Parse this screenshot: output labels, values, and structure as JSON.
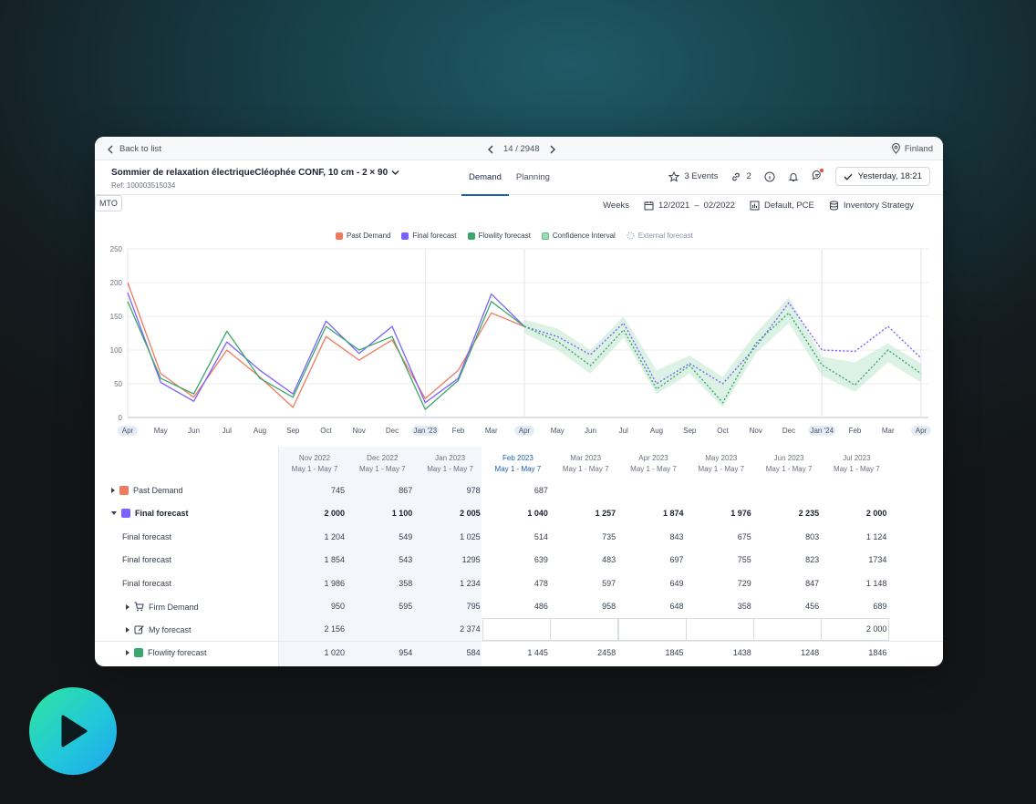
{
  "topbar": {
    "back_label": "Back to list",
    "pager": "14 / 2948",
    "location": "Finland"
  },
  "product": {
    "title": "Sommier de relaxation électriqueCléophée CONF, 10 cm - 2 × 90",
    "ref": "Ref: 100003515034"
  },
  "tabs": [
    {
      "label": "Demand",
      "active": true
    },
    {
      "label": "Planning",
      "active": false
    }
  ],
  "header_actions": {
    "events": "3 Events",
    "links_count": "2",
    "updated": "Yesterday, 18:21"
  },
  "toolbar": {
    "mto": "MTO",
    "granularity": "Weeks",
    "date_from": "12/2021",
    "date_sep": "–",
    "date_to": "02/2022",
    "scenario": "Default, PCE",
    "strategy": "Inventory Strategy"
  },
  "colors": {
    "past_demand": "#f07a5d",
    "final_forecast": "#7b61ff",
    "flowlity_forecast": "#3aa86b",
    "confidence": "#bfe8cf",
    "external_forecast": "#8fa3d6",
    "accent": "#1b5fad"
  },
  "chart_data": {
    "type": "line",
    "legend": [
      "Past Demand",
      "Final forecast",
      "Flowlity forecast",
      "Confidence Interval",
      "External forecast"
    ],
    "x_labels": [
      "Apr",
      "May",
      "Jun",
      "Jul",
      "Aug",
      "Sep",
      "Oct",
      "Nov",
      "Dec",
      "Jan '23",
      "Feb",
      "Mar",
      "Apr",
      "May",
      "Jun",
      "Jul",
      "Aug",
      "Sep",
      "Oct",
      "Nov",
      "Dec",
      "Jan '24",
      "Feb",
      "Mar",
      "Apr"
    ],
    "highlighted_x_labels": [
      "Jan '23",
      "Apr",
      "Jan '24"
    ],
    "y_ticks": [
      0,
      50,
      100,
      150,
      200,
      250
    ],
    "ylim": [
      0,
      250
    ],
    "grid": true,
    "series": [
      {
        "name": "Past Demand",
        "style": "solid",
        "x_start": 0,
        "values": [
          200,
          65,
          30,
          100,
          60,
          15,
          120,
          85,
          115,
          28,
          70,
          155,
          135
        ]
      },
      {
        "name": "Final forecast",
        "style": "solid",
        "x_start": 0,
        "values": [
          185,
          52,
          24,
          112,
          70,
          35,
          143,
          95,
          135,
          22,
          58,
          183,
          135
        ]
      },
      {
        "name": "Flowlity forecast",
        "style": "solid",
        "x_start": 0,
        "values": [
          172,
          58,
          35,
          128,
          58,
          30,
          135,
          100,
          120,
          12,
          55,
          172,
          135
        ]
      },
      {
        "name": "Final forecast",
        "style": "dotted",
        "x_start": 12,
        "values": [
          135,
          120,
          93,
          140,
          50,
          80,
          50,
          105,
          170,
          100,
          98,
          135,
          88
        ]
      },
      {
        "name": "Flowlity forecast",
        "style": "dotted",
        "x_start": 12,
        "values": [
          135,
          113,
          77,
          130,
          42,
          77,
          22,
          110,
          155,
          78,
          48,
          100,
          65
        ]
      }
    ],
    "confidence_band": {
      "x_start": 12,
      "upper": [
        145,
        132,
        100,
        150,
        70,
        92,
        60,
        125,
        178,
        90,
        82,
        110,
        80
      ],
      "lower": [
        125,
        100,
        65,
        118,
        35,
        65,
        15,
        95,
        140,
        62,
        38,
        82,
        52
      ]
    }
  },
  "table": {
    "columns": [
      {
        "month": "Nov 2022",
        "range": "May 1 - May 7"
      },
      {
        "month": "Dec 2022",
        "range": "May 1 - May 7"
      },
      {
        "month": "Jan 2023",
        "range": "May 1 - May 7"
      },
      {
        "month": "Feb 2023",
        "range": "May 1 - May 7",
        "current": true
      },
      {
        "month": "Mar 2023",
        "range": "May 1 - May 7"
      },
      {
        "month": "Apr 2023",
        "range": "May 1 - May 7"
      },
      {
        "month": "May 2023",
        "range": "May 1 - May 7"
      },
      {
        "month": "Jun 2023",
        "range": "May 1 - May 7"
      },
      {
        "month": "Jul 2023",
        "range": "May 1 - May 7"
      }
    ],
    "rows": [
      {
        "label": "Past Demand",
        "caret": "right",
        "marker": "past",
        "bold": false,
        "indent": 0,
        "values": [
          "745",
          "867",
          "978",
          "687",
          "",
          "",
          "",
          "",
          ""
        ]
      },
      {
        "label": "Final forecast",
        "caret": "down",
        "marker": "final",
        "bold": true,
        "indent": 0,
        "values": [
          "2 000",
          "1 100",
          "2 005",
          "1 040",
          "1 257",
          "1 874",
          "1 976",
          "2 235",
          "2 000"
        ]
      },
      {
        "label": "Final forecast",
        "caret": "",
        "marker": "",
        "bold": false,
        "indent": 1,
        "values": [
          "1 204",
          "549",
          "1 025",
          "514",
          "735",
          "843",
          "675",
          "803",
          "1 124"
        ]
      },
      {
        "label": "Final forecast",
        "caret": "",
        "marker": "",
        "bold": false,
        "indent": 1,
        "values": [
          "1 854",
          "543",
          "1295",
          "639",
          "483",
          "697",
          "755",
          "823",
          "1734"
        ]
      },
      {
        "label": "Final forecast",
        "caret": "",
        "marker": "",
        "bold": false,
        "indent": 1,
        "values": [
          "1 986",
          "358",
          "1 234",
          "478",
          "597",
          "649",
          "729",
          "847",
          "1 148"
        ]
      },
      {
        "label": "Firm Demand",
        "caret": "right",
        "marker": "cart",
        "bold": false,
        "indent": 2,
        "values": [
          "950",
          "595",
          "795",
          "486",
          "958",
          "648",
          "358",
          "456",
          "689"
        ]
      },
      {
        "label": "My forecast",
        "caret": "right",
        "marker": "edit",
        "bold": false,
        "indent": 2,
        "editable": true,
        "values": [
          "2 156",
          "",
          "2 374",
          "",
          "",
          "",
          "",
          "",
          "2 000"
        ]
      },
      {
        "label": "Flowlity forecast",
        "caret": "right",
        "marker": "flowlity",
        "bold": false,
        "indent": 2,
        "values": [
          "1 020",
          "954",
          "584",
          "1 445",
          "2458",
          "1845",
          "1438",
          "1248",
          "1846"
        ]
      }
    ]
  }
}
